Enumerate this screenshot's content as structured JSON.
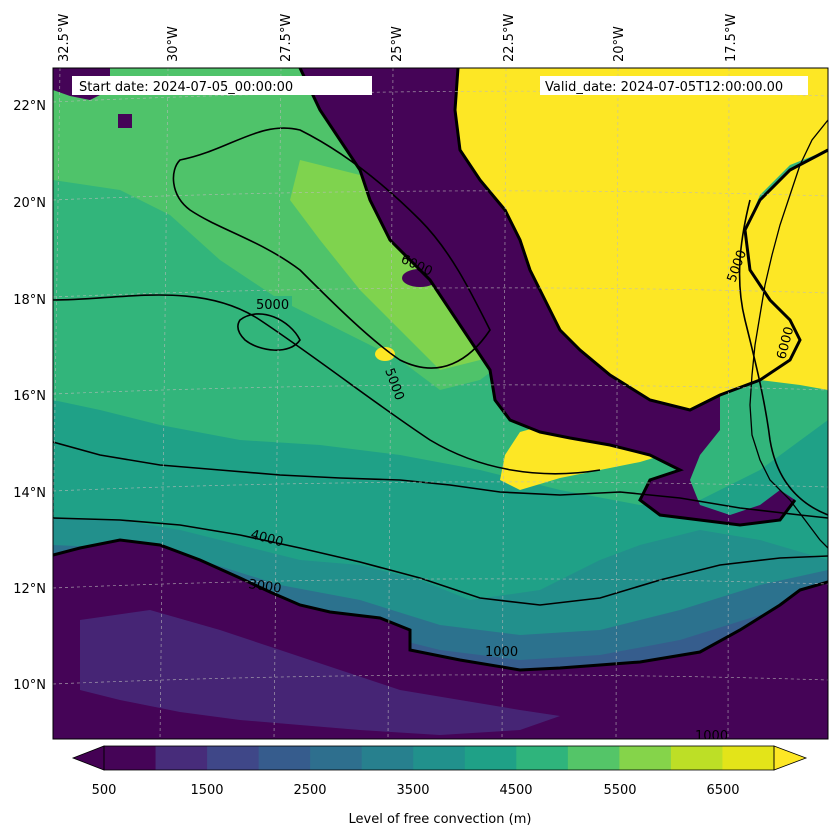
{
  "map": {
    "start_date_text": "Start date: 2024-07-05_00:00:00",
    "valid_date_text": "Valid_date: 2024-07-05T12:00:00.00",
    "longitude_labels": [
      "32.5°W",
      "30°W",
      "27.5°W",
      "25°W",
      "22.5°W",
      "20°W",
      "17.5°W"
    ],
    "latitude_labels": [
      "22°N",
      "20°N",
      "18°N",
      "16°N",
      "14°N",
      "12°N",
      "10°N"
    ],
    "contour_labels": [
      "5000",
      "4000",
      "3000",
      "1000",
      "1000",
      "6000",
      "5000",
      "5000",
      "6000"
    ],
    "colors": {
      "very_low": "#440154",
      "low": "#3e4a89",
      "mid_low": "#31688e",
      "mid": "#26828e",
      "mid_high": "#1f9e89",
      "high": "#35b779",
      "higher": "#6ece58",
      "top": "#fde725",
      "coast": "#000000"
    }
  },
  "colorbar": {
    "tick_labels": [
      "500",
      "1500",
      "2500",
      "3500",
      "4500",
      "5500",
      "6500"
    ],
    "label": "Level of free convection (m)",
    "colors": [
      "#450457",
      "#472c7a",
      "#3f4788",
      "#365c8d",
      "#2e6f8e",
      "#27808e",
      "#21918c",
      "#1fa187",
      "#2fb47c",
      "#54c568",
      "#85d44a",
      "#bddf26",
      "#e3e419"
    ]
  }
}
